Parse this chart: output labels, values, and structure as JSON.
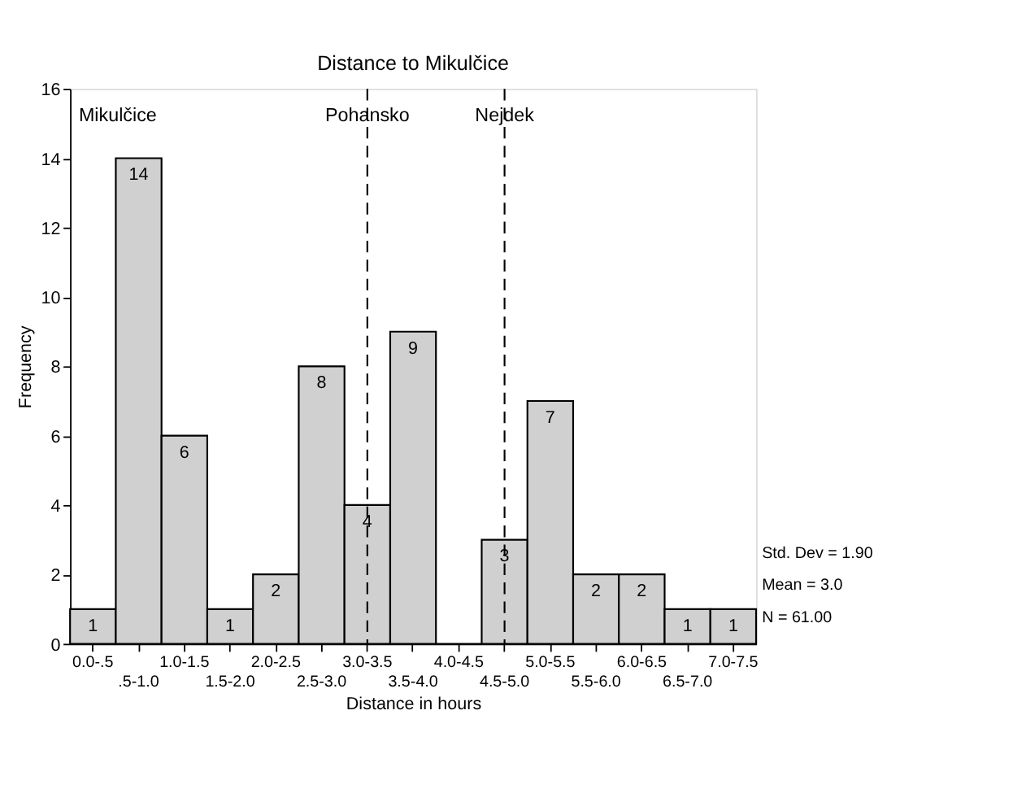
{
  "chart_data": {
    "type": "bar",
    "title": "Distance to Mikulčice",
    "xlabel": "Distance in hours",
    "ylabel": "Frequency",
    "categories": [
      "0.0-.5",
      ".5-1.0",
      "1.0-1.5",
      "1.5-2.0",
      "2.0-2.5",
      "2.5-3.0",
      "3.0-3.5",
      "3.5-4.0",
      "4.0-4.5",
      "4.5-5.0",
      "5.0-5.5",
      "5.5-6.0",
      "6.0-6.5",
      "6.5-7.0",
      "7.0-7.5"
    ],
    "values": [
      1,
      14,
      6,
      1,
      2,
      8,
      4,
      9,
      0,
      3,
      7,
      2,
      2,
      1,
      1
    ],
    "value_labels": [
      "1",
      "14",
      "6",
      "1",
      "2",
      "8",
      "4",
      "9",
      null,
      "3",
      "7",
      "2",
      "2",
      "1",
      "1"
    ],
    "color": "#d0d0d0",
    "ylim": [
      0,
      16
    ],
    "yticks": [
      0,
      2,
      4,
      6,
      8,
      10,
      12,
      14,
      16
    ],
    "ref_lines": [
      {
        "axis": "x",
        "value": "3.0-3.5",
        "label": "Pohansko",
        "line_style": "dashed"
      },
      {
        "axis": "x",
        "value": "4.5-5.0",
        "label": "Nejdek",
        "line_style": "dashed"
      }
    ],
    "annotations": [
      "Mikulčice",
      "Std. Dev = 1.90",
      "Mean = 3.0",
      "N = 61.00"
    ],
    "grid": false
  }
}
